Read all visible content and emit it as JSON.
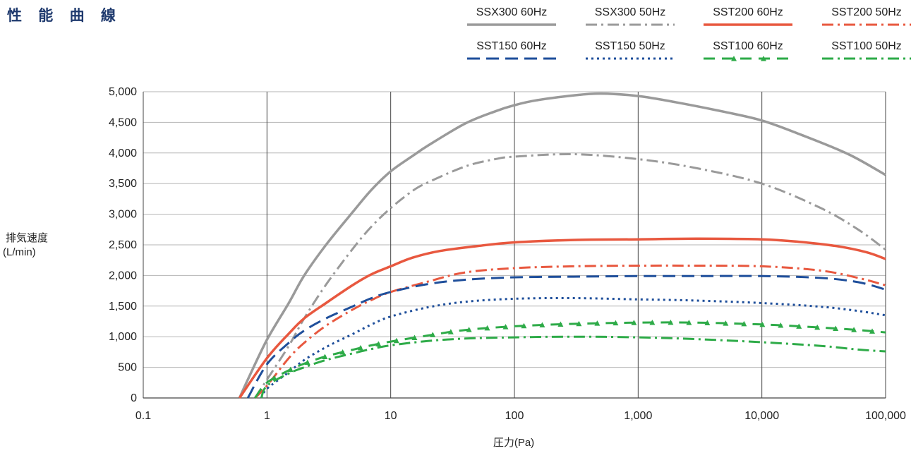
{
  "page": {
    "title": "性 能 曲 線"
  },
  "chart_data": {
    "type": "line",
    "title": "性能曲線",
    "xlabel": "圧力(Pa)",
    "ylabel": "排気速度",
    "ylabel_unit": "(L/min)",
    "xscale": "log",
    "xlim": [
      0.1,
      100000
    ],
    "ylim": [
      0,
      5000
    ],
    "x_ticks": [
      0.1,
      1,
      10,
      100,
      1000,
      10000,
      100000
    ],
    "x_tick_labels": [
      "0.1",
      "1",
      "10",
      "100",
      "1,000",
      "10,000",
      "100,000"
    ],
    "y_ticks": [
      0,
      500,
      1000,
      1500,
      2000,
      2500,
      3000,
      3500,
      4000,
      4500,
      5000
    ],
    "y_tick_labels": [
      "0",
      "500",
      "1,000",
      "1,500",
      "2,000",
      "2,500",
      "3,000",
      "3,500",
      "4,000",
      "4,500",
      "5,000"
    ],
    "grid": {
      "horizontal": true,
      "vertical": "decades"
    },
    "legend_position": "top-right",
    "series": [
      {
        "name": "SSX300 60Hz",
        "color": "#9a9a9a",
        "style": "solid",
        "points": [
          [
            0.6,
            0
          ],
          [
            0.7,
            300
          ],
          [
            1,
            950
          ],
          [
            1.5,
            1550
          ],
          [
            2,
            2000
          ],
          [
            3,
            2500
          ],
          [
            5,
            3050
          ],
          [
            7,
            3400
          ],
          [
            10,
            3700
          ],
          [
            15,
            3950
          ],
          [
            20,
            4120
          ],
          [
            40,
            4480
          ],
          [
            70,
            4680
          ],
          [
            100,
            4780
          ],
          [
            150,
            4860
          ],
          [
            300,
            4940
          ],
          [
            500,
            4970
          ],
          [
            1000,
            4930
          ],
          [
            2000,
            4830
          ],
          [
            5000,
            4670
          ],
          [
            10000,
            4530
          ],
          [
            20000,
            4310
          ],
          [
            50000,
            3980
          ],
          [
            100000,
            3640
          ]
        ]
      },
      {
        "name": "SSX300 50Hz",
        "color": "#9a9a9a",
        "style": "dashdot",
        "points": [
          [
            0.8,
            0
          ],
          [
            1,
            300
          ],
          [
            1.5,
            850
          ],
          [
            2,
            1300
          ],
          [
            3,
            1850
          ],
          [
            5,
            2450
          ],
          [
            7,
            2800
          ],
          [
            10,
            3100
          ],
          [
            15,
            3380
          ],
          [
            20,
            3520
          ],
          [
            40,
            3780
          ],
          [
            70,
            3900
          ],
          [
            100,
            3940
          ],
          [
            300,
            3980
          ],
          [
            1000,
            3900
          ],
          [
            3000,
            3750
          ],
          [
            10000,
            3500
          ],
          [
            30000,
            3100
          ],
          [
            60000,
            2750
          ],
          [
            100000,
            2420
          ]
        ]
      },
      {
        "name": "SST200 60Hz",
        "color": "#e8583f",
        "style": "solid",
        "points": [
          [
            0.6,
            0
          ],
          [
            1,
            650
          ],
          [
            1.5,
            1050
          ],
          [
            2,
            1300
          ],
          [
            3,
            1550
          ],
          [
            5,
            1850
          ],
          [
            7,
            2020
          ],
          [
            10,
            2150
          ],
          [
            15,
            2290
          ],
          [
            25,
            2400
          ],
          [
            50,
            2480
          ],
          [
            100,
            2540
          ],
          [
            300,
            2580
          ],
          [
            1000,
            2590
          ],
          [
            3000,
            2600
          ],
          [
            10000,
            2590
          ],
          [
            20000,
            2550
          ],
          [
            40000,
            2480
          ],
          [
            70000,
            2380
          ],
          [
            100000,
            2270
          ]
        ]
      },
      {
        "name": "SST200 50Hz",
        "color": "#e8583f",
        "style": "dashdot",
        "points": [
          [
            0.8,
            0
          ],
          [
            1,
            200
          ],
          [
            1.5,
            650
          ],
          [
            2,
            900
          ],
          [
            3,
            1180
          ],
          [
            5,
            1450
          ],
          [
            7,
            1600
          ],
          [
            10,
            1730
          ],
          [
            20,
            1900
          ],
          [
            40,
            2050
          ],
          [
            100,
            2120
          ],
          [
            300,
            2150
          ],
          [
            1000,
            2160
          ],
          [
            3000,
            2160
          ],
          [
            10000,
            2150
          ],
          [
            30000,
            2080
          ],
          [
            60000,
            1960
          ],
          [
            100000,
            1840
          ]
        ]
      },
      {
        "name": "SST150 60Hz",
        "color": "#1f4f9b",
        "style": "dash",
        "points": [
          [
            0.7,
            0
          ],
          [
            1,
            550
          ],
          [
            1.5,
            900
          ],
          [
            2,
            1100
          ],
          [
            3,
            1300
          ],
          [
            5,
            1500
          ],
          [
            7,
            1630
          ],
          [
            10,
            1730
          ],
          [
            20,
            1860
          ],
          [
            40,
            1930
          ],
          [
            100,
            1970
          ],
          [
            300,
            1980
          ],
          [
            1000,
            1990
          ],
          [
            3000,
            1990
          ],
          [
            10000,
            1990
          ],
          [
            30000,
            1960
          ],
          [
            60000,
            1890
          ],
          [
            100000,
            1770
          ]
        ]
      },
      {
        "name": "SST150 50Hz",
        "color": "#1f4f9b",
        "style": "dot",
        "points": [
          [
            0.9,
            0
          ],
          [
            1,
            150
          ],
          [
            1.5,
            420
          ],
          [
            2,
            620
          ],
          [
            3,
            830
          ],
          [
            5,
            1050
          ],
          [
            7,
            1200
          ],
          [
            10,
            1330
          ],
          [
            20,
            1480
          ],
          [
            40,
            1570
          ],
          [
            100,
            1620
          ],
          [
            300,
            1630
          ],
          [
            1000,
            1610
          ],
          [
            3000,
            1590
          ],
          [
            10000,
            1550
          ],
          [
            30000,
            1490
          ],
          [
            60000,
            1420
          ],
          [
            100000,
            1350
          ]
        ]
      },
      {
        "name": "SST100 60Hz",
        "color": "#2eab48",
        "style": "dash-triangle",
        "points": [
          [
            0.8,
            0
          ],
          [
            1,
            250
          ],
          [
            1.5,
            450
          ],
          [
            2,
            560
          ],
          [
            3,
            680
          ],
          [
            5,
            790
          ],
          [
            7,
            860
          ],
          [
            10,
            920
          ],
          [
            20,
            1020
          ],
          [
            40,
            1110
          ],
          [
            100,
            1170
          ],
          [
            300,
            1210
          ],
          [
            1000,
            1230
          ],
          [
            3000,
            1230
          ],
          [
            10000,
            1200
          ],
          [
            30000,
            1150
          ],
          [
            60000,
            1110
          ],
          [
            100000,
            1070
          ]
        ]
      },
      {
        "name": "SST100 50Hz",
        "color": "#2eab48",
        "style": "dashdot",
        "points": [
          [
            0.9,
            0
          ],
          [
            1,
            200
          ],
          [
            1.5,
            400
          ],
          [
            2,
            500
          ],
          [
            3,
            620
          ],
          [
            5,
            730
          ],
          [
            7,
            800
          ],
          [
            10,
            860
          ],
          [
            20,
            930
          ],
          [
            40,
            970
          ],
          [
            100,
            990
          ],
          [
            300,
            1000
          ],
          [
            1000,
            990
          ],
          [
            3000,
            960
          ],
          [
            10000,
            910
          ],
          [
            30000,
            850
          ],
          [
            60000,
            790
          ],
          [
            100000,
            760
          ]
        ]
      }
    ]
  }
}
